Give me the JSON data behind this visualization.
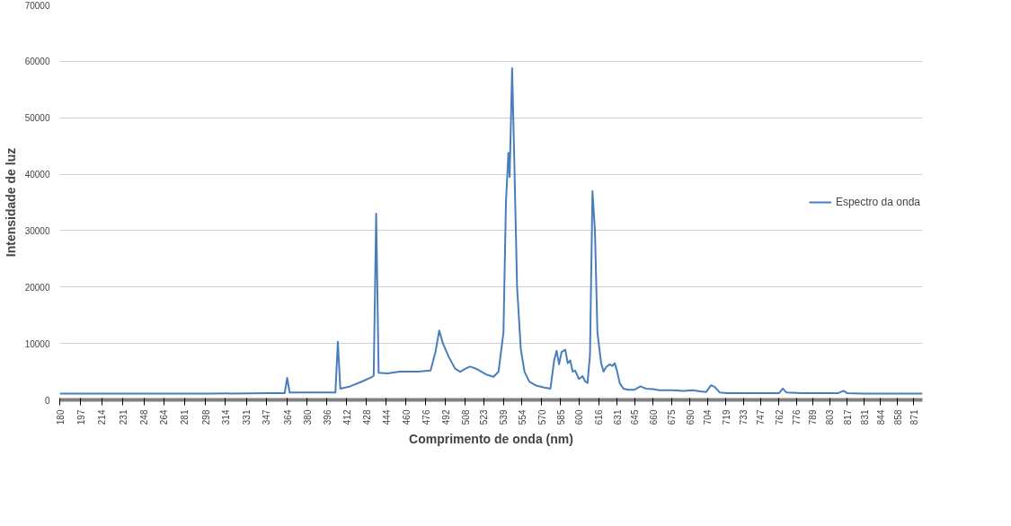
{
  "chart_data": {
    "type": "line",
    "xlabel": "Comprimento de onda (nm)",
    "ylabel": "Intensidade de luz",
    "xlim": [
      180,
      878
    ],
    "xticks": [
      180,
      197,
      214,
      231,
      248,
      264,
      281,
      298,
      314,
      331,
      347,
      364,
      380,
      396,
      412,
      428,
      444,
      460,
      476,
      492,
      508,
      523,
      539,
      554,
      570,
      585,
      600,
      616,
      631,
      645,
      660,
      675,
      690,
      704,
      719,
      733,
      747,
      762,
      776,
      789,
      803,
      817,
      831,
      844,
      858,
      871
    ],
    "ylim": [
      0,
      70000
    ],
    "yticks": [
      0,
      10000,
      20000,
      30000,
      40000,
      50000,
      60000,
      70000
    ],
    "grid": "y",
    "legend": "right",
    "marker": "none",
    "line_style": "solid",
    "series": [
      {
        "name": "Espectro da onda",
        "color": "#4a7ebb",
        "x": [
          180,
          200,
          250,
          300,
          350,
          362,
          364,
          366,
          380,
          400,
          403,
          405,
          407,
          415,
          425,
          432,
          434,
          436,
          438,
          445,
          455,
          470,
          480,
          484,
          487,
          490,
          495,
          500,
          504,
          508,
          512,
          518,
          525,
          531,
          535,
          539,
          541,
          543,
          544,
          546,
          548,
          550,
          553,
          556,
          560,
          566,
          572,
          577,
          580,
          582,
          584,
          586,
          589,
          591,
          593,
          595,
          597,
          600,
          603,
          605,
          607,
          609,
          611,
          613,
          615,
          618,
          620,
          622,
          625,
          627,
          629,
          631,
          633,
          636,
          640,
          645,
          650,
          654,
          660,
          665,
          675,
          685,
          692,
          698,
          703,
          707,
          710,
          714,
          720,
          740,
          755,
          762,
          765,
          768,
          780,
          800,
          810,
          814,
          817,
          830,
          850,
          878
        ],
        "values": [
          1100,
          1100,
          1100,
          1100,
          1200,
          1200,
          3900,
          1300,
          1300,
          1300,
          1300,
          10300,
          2000,
          2400,
          3300,
          4000,
          4300,
          33000,
          4800,
          4700,
          5000,
          5000,
          5200,
          8500,
          12300,
          10000,
          7500,
          5500,
          5000,
          5500,
          5900,
          5400,
          4500,
          4100,
          5000,
          12000,
          35000,
          43800,
          39500,
          58800,
          40000,
          20000,
          9000,
          5000,
          3200,
          2500,
          2200,
          2000,
          7000,
          8700,
          6300,
          8500,
          8900,
          6500,
          7000,
          5000,
          5200,
          3700,
          4200,
          3300,
          3000,
          8000,
          37000,
          30000,
          12000,
          6500,
          5000,
          5800,
          6300,
          6000,
          6500,
          5000,
          3000,
          2000,
          1800,
          1800,
          2400,
          2000,
          1900,
          1700,
          1700,
          1600,
          1700,
          1500,
          1400,
          2600,
          2300,
          1300,
          1200,
          1200,
          1200,
          1200,
          2000,
          1300,
          1200,
          1200,
          1200,
          1600,
          1200,
          1100,
          1100,
          1100
        ]
      }
    ]
  }
}
